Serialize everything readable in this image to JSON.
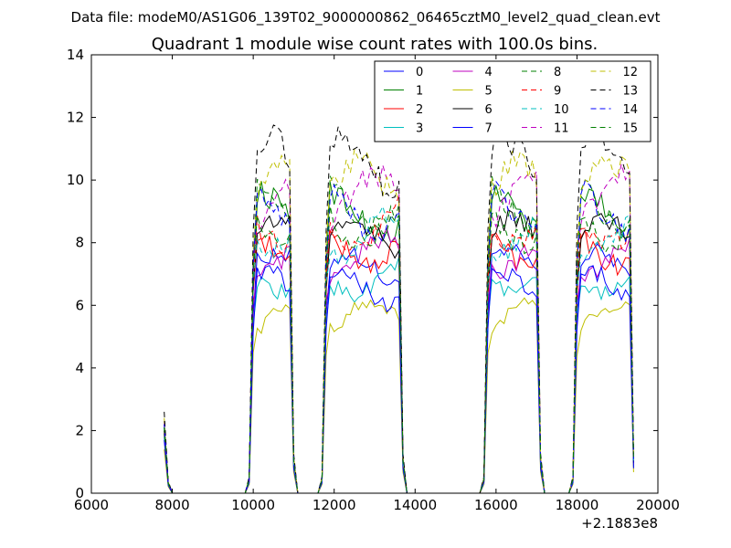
{
  "header": {
    "data_file": "Data file: modeM0/AS1G06_139T02_9000000862_06465cztM0_level2_quad_clean.evt"
  },
  "chart_data": {
    "type": "line",
    "title": "Quadrant 1 module wise count rates with 100.0s bins.",
    "xlabel": "",
    "ylabel": "",
    "x_offset_label": "+2.1883e8",
    "xlim": [
      6000,
      20000
    ],
    "ylim": [
      0,
      14
    ],
    "xticks": [
      6000,
      8000,
      10000,
      12000,
      14000,
      16000,
      18000,
      20000
    ],
    "yticks": [
      0,
      2,
      4,
      6,
      8,
      10,
      12,
      14
    ],
    "xtick_labels": [
      "6000",
      "8000",
      "10000",
      "12000",
      "14000",
      "16000",
      "18000",
      "20000"
    ],
    "ytick_labels": [
      "0",
      "2",
      "4",
      "6",
      "8",
      "10",
      "12",
      "14"
    ],
    "legend": {
      "location": "upper right",
      "columns": 4,
      "entries": [
        "0",
        "1",
        "2",
        "3",
        "4",
        "5",
        "6",
        "7",
        "8",
        "9",
        "10",
        "11",
        "12",
        "13",
        "14",
        "15"
      ]
    },
    "segments": [
      {
        "x_start": 7800,
        "x_end": 7900,
        "kind": "spike"
      },
      {
        "x_start": 9900,
        "x_end": 11000,
        "kind": "orbit"
      },
      {
        "x_start": 11700,
        "x_end": 13700,
        "kind": "orbit"
      },
      {
        "x_start": 15700,
        "x_end": 17100,
        "kind": "orbit"
      },
      {
        "x_start": 17900,
        "x_end": 19400,
        "kind": "orbit"
      }
    ],
    "series": [
      {
        "name": "0",
        "color": "#0000ff",
        "dash": "solid",
        "level": 7.1,
        "spike": 2.1
      },
      {
        "name": "1",
        "color": "#008000",
        "dash": "solid",
        "level": 8.9,
        "spike": 1.9
      },
      {
        "name": "2",
        "color": "#ff0000",
        "dash": "solid",
        "level": 7.9,
        "spike": 2.0
      },
      {
        "name": "3",
        "color": "#00bfbf",
        "dash": "solid",
        "level": 6.9,
        "spike": 1.8
      },
      {
        "name": "4",
        "color": "#bf00bf",
        "dash": "solid",
        "level": 7.6,
        "spike": 2.0
      },
      {
        "name": "5",
        "color": "#bfbf00",
        "dash": "solid",
        "level": 5.6,
        "spike": 1.4
      },
      {
        "name": "6",
        "color": "#000000",
        "dash": "solid",
        "level": 8.1,
        "spike": 2.0
      },
      {
        "name": "7",
        "color": "#0000ff",
        "dash": "solid",
        "level": 6.6,
        "spike": 1.7
      },
      {
        "name": "8",
        "color": "#008000",
        "dash": "dashed",
        "level": 9.2,
        "spike": 2.3
      },
      {
        "name": "9",
        "color": "#ff0000",
        "dash": "dashed",
        "level": 8.6,
        "spike": 2.2
      },
      {
        "name": "10",
        "color": "#00bfbf",
        "dash": "dashed",
        "level": 8.3,
        "spike": 2.1
      },
      {
        "name": "11",
        "color": "#bf00bf",
        "dash": "dashed",
        "level": 9.4,
        "spike": 2.3
      },
      {
        "name": "12",
        "color": "#bfbf00",
        "dash": "dashed",
        "level": 9.8,
        "spike": 2.4
      },
      {
        "name": "13",
        "color": "#000000",
        "dash": "dashed",
        "level": 10.5,
        "spike": 2.6
      },
      {
        "name": "14",
        "color": "#0000ff",
        "dash": "dashed",
        "level": 9.0,
        "spike": 2.2
      },
      {
        "name": "15",
        "color": "#008000",
        "dash": "dashed",
        "level": 8.7,
        "spike": 2.1
      }
    ]
  }
}
